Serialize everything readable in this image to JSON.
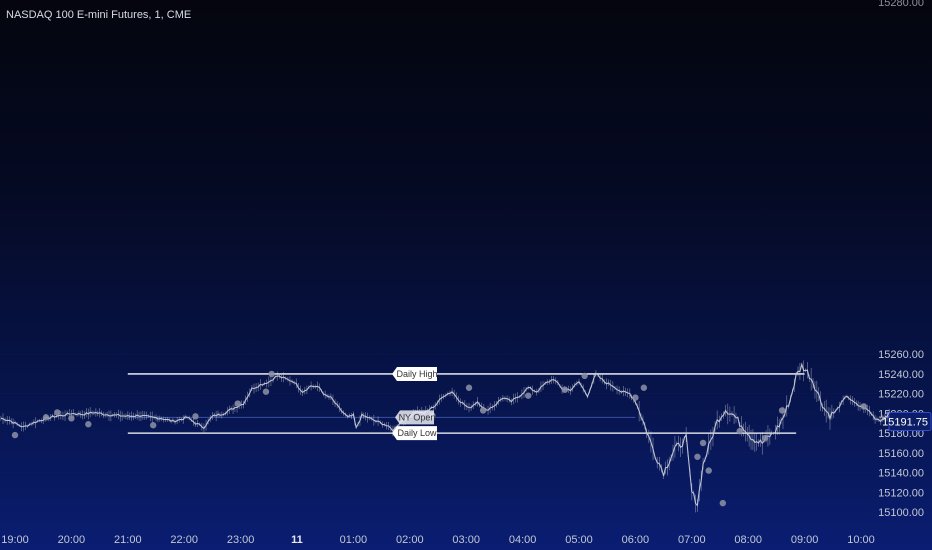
{
  "chart": {
    "title": "NASDAQ 100 E-mini Futures, 1, CME",
    "corner_label": "15280.00",
    "current_price_label": "15191.75"
  },
  "chart_data": {
    "type": "line",
    "title": "NASDAQ 100 E-mini Futures, 1, CME",
    "ylim": [
      15100,
      15280
    ],
    "yticks": [
      "15260.00",
      "15240.00",
      "15220.00",
      "15200.00",
      "15180.00",
      "15160.00",
      "15140.00",
      "15120.00",
      "15100.00"
    ],
    "ytick_values": [
      15260,
      15240,
      15220,
      15200,
      15180,
      15160,
      15140,
      15120,
      15100
    ],
    "xticks": [
      {
        "label": "19:00",
        "t": 0,
        "bold": false
      },
      {
        "label": "20:00",
        "t": 1,
        "bold": false
      },
      {
        "label": "21:00",
        "t": 2,
        "bold": false
      },
      {
        "label": "22:00",
        "t": 3,
        "bold": false
      },
      {
        "label": "23:00",
        "t": 4,
        "bold": false
      },
      {
        "label": "11",
        "t": 5,
        "bold": true
      },
      {
        "label": "01:00",
        "t": 6,
        "bold": false
      },
      {
        "label": "02:00",
        "t": 7,
        "bold": false
      },
      {
        "label": "03:00",
        "t": 8,
        "bold": false
      },
      {
        "label": "04:00",
        "t": 9,
        "bold": false
      },
      {
        "label": "05:00",
        "t": 10,
        "bold": false
      },
      {
        "label": "06:00",
        "t": 11,
        "bold": false
      },
      {
        "label": "07:00",
        "t": 12,
        "bold": false
      },
      {
        "label": "08:00",
        "t": 13,
        "bold": false
      },
      {
        "label": "09:00",
        "t": 14,
        "bold": false
      },
      {
        "label": "10:00",
        "t": 15,
        "bold": false
      }
    ],
    "series": [
      {
        "x": [
          -0.25,
          -0.1,
          0.0,
          0.15,
          0.3,
          0.5,
          0.7,
          0.85,
          1.0,
          1.2,
          1.4,
          1.6,
          1.8,
          2.0,
          2.2,
          2.4,
          2.6,
          2.8,
          2.95,
          3.05,
          3.2,
          3.35,
          3.5,
          3.7,
          3.9,
          4.05,
          4.2,
          4.35,
          4.5,
          4.65,
          4.8,
          4.95,
          5.1,
          5.25,
          5.4,
          5.5,
          5.6,
          5.75,
          5.9,
          6.0,
          6.05,
          6.15,
          6.25,
          6.4,
          6.55,
          6.7,
          6.85,
          6.95,
          7.1,
          7.25,
          7.45,
          7.6,
          7.75,
          7.9,
          8.05,
          8.2,
          8.35,
          8.5,
          8.65,
          8.8,
          8.95,
          9.1,
          9.25,
          9.4,
          9.55,
          9.7,
          9.85,
          10.0,
          10.15,
          10.3,
          10.45,
          10.6,
          10.75,
          10.9,
          11.0,
          11.1,
          11.2,
          11.35,
          11.5,
          11.6,
          11.7,
          11.8,
          11.9,
          12.0,
          12.1,
          12.2,
          12.3,
          12.45,
          12.6,
          12.75,
          12.85,
          12.95,
          13.05,
          13.15,
          13.25,
          13.35,
          13.45,
          13.55,
          13.65,
          13.75,
          13.85,
          13.95,
          14.05,
          14.15,
          14.25,
          14.35,
          14.45,
          14.55,
          14.65,
          14.75,
          14.85,
          14.95,
          15.05,
          15.15,
          15.25,
          15.35,
          15.5,
          15.6
        ],
        "y": [
          15195,
          15193,
          15190,
          15186,
          15190,
          15194,
          15197,
          15198,
          15200,
          15199,
          15201,
          15199,
          15198,
          15197,
          15198,
          15196,
          15195,
          15192,
          15194,
          15196,
          15190,
          15186,
          15197,
          15200,
          15206,
          15210,
          15225,
          15229,
          15232,
          15238,
          15235,
          15232,
          15222,
          15228,
          15226,
          15218,
          15216,
          15205,
          15196,
          15198,
          15185,
          15198,
          15196,
          15192,
          15189,
          15183,
          15192,
          15195,
          15202,
          15200,
          15208,
          15218,
          15222,
          15212,
          15205,
          15212,
          15203,
          15208,
          15216,
          15212,
          15218,
          15226,
          15222,
          15230,
          15235,
          15225,
          15224,
          15232,
          15218,
          15240,
          15232,
          15228,
          15222,
          15220,
          15212,
          15198,
          15182,
          15158,
          15140,
          15152,
          15165,
          15168,
          15175,
          15120,
          15108,
          15148,
          15166,
          15192,
          15204,
          15198,
          15190,
          15184,
          15176,
          15172,
          15170,
          15176,
          15180,
          15188,
          15200,
          15215,
          15238,
          15248,
          15242,
          15232,
          15218,
          15205,
          15198,
          15202,
          15210,
          15218,
          15212,
          15208,
          15206,
          15202,
          15195,
          15193,
          15200,
          15192
        ]
      }
    ],
    "levels": [
      {
        "name": "Daily High",
        "value": 15240,
        "t_start": 2.0,
        "t_end": 14.0
      },
      {
        "name": "NY Open",
        "value": 15196,
        "t_start": 2.0,
        "t_end": 11.0
      },
      {
        "name": "Daily Low",
        "value": 15180,
        "t_start": 2.0,
        "t_end": 13.85
      }
    ],
    "markers": [
      {
        "x": 0.0,
        "y": 15178
      },
      {
        "x": 0.55,
        "y": 15196
      },
      {
        "x": 0.75,
        "y": 15201
      },
      {
        "x": 1.0,
        "y": 15195
      },
      {
        "x": 1.3,
        "y": 15189
      },
      {
        "x": 2.45,
        "y": 15188
      },
      {
        "x": 3.2,
        "y": 15197
      },
      {
        "x": 4.55,
        "y": 15240
      },
      {
        "x": 3.95,
        "y": 15210
      },
      {
        "x": 4.45,
        "y": 15222
      },
      {
        "x": 6.8,
        "y": 15183
      },
      {
        "x": 7.4,
        "y": 15198
      },
      {
        "x": 8.3,
        "y": 15203
      },
      {
        "x": 8.05,
        "y": 15226
      },
      {
        "x": 9.1,
        "y": 15218
      },
      {
        "x": 9.75,
        "y": 15224
      },
      {
        "x": 10.1,
        "y": 15238
      },
      {
        "x": 11.0,
        "y": 15216
      },
      {
        "x": 11.15,
        "y": 15226
      },
      {
        "x": 12.85,
        "y": 15182
      },
      {
        "x": 12.2,
        "y": 15170
      },
      {
        "x": 12.1,
        "y": 15156
      },
      {
        "x": 12.3,
        "y": 15142
      },
      {
        "x": 12.55,
        "y": 15109
      },
      {
        "x": 13.3,
        "y": 15175
      },
      {
        "x": 13.6,
        "y": 15203
      },
      {
        "x": 15.05,
        "y": 15207
      }
    ],
    "current_price": 15191.75,
    "colors": {
      "line": "#c8ccd6",
      "level": "#ffffff",
      "ny_open": "#3a4fa0",
      "price_tag": "#0c1d66"
    }
  }
}
